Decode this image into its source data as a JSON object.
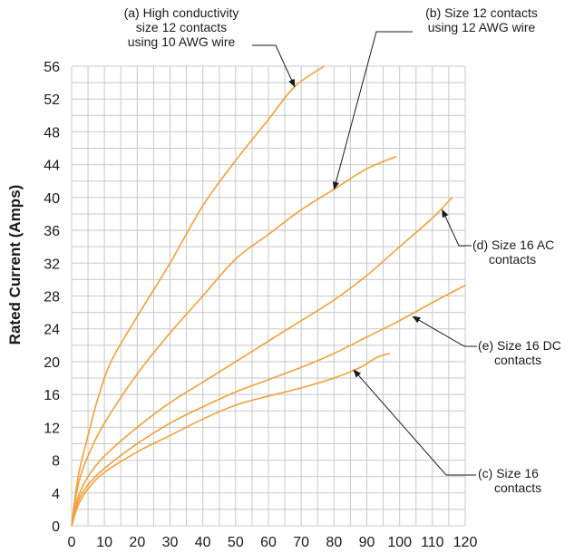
{
  "chart_data": {
    "type": "line",
    "title": "",
    "xlabel": "",
    "ylabel": "Rated Current (Amps)",
    "xlim": [
      0,
      120
    ],
    "ylim": [
      0,
      56
    ],
    "x_ticks": [
      0,
      10,
      20,
      30,
      40,
      50,
      60,
      70,
      80,
      90,
      100,
      110,
      120
    ],
    "y_ticks": [
      0,
      4,
      8,
      12,
      16,
      20,
      24,
      28,
      32,
      36,
      40,
      44,
      48,
      52,
      56
    ],
    "grid": true,
    "line_color": "#f2a03a",
    "series": [
      {
        "id": "a",
        "values": [
          [
            0,
            0
          ],
          [
            2,
            6
          ],
          [
            5,
            11
          ],
          [
            8,
            15.5
          ],
          [
            12,
            20
          ],
          [
            20,
            25.5
          ],
          [
            30,
            32
          ],
          [
            40,
            39
          ],
          [
            50,
            44.5
          ],
          [
            60,
            49.5
          ],
          [
            68,
            53.5
          ],
          [
            77,
            56
          ]
        ]
      },
      {
        "id": "b",
        "values": [
          [
            0,
            0
          ],
          [
            2,
            5
          ],
          [
            5,
            8.5
          ],
          [
            10,
            12.5
          ],
          [
            20,
            18.5
          ],
          [
            30,
            23.5
          ],
          [
            40,
            28
          ],
          [
            50,
            32.5
          ],
          [
            60,
            35.5
          ],
          [
            70,
            38.5
          ],
          [
            80,
            41
          ],
          [
            90,
            43.5
          ],
          [
            99,
            45
          ]
        ]
      },
      {
        "id": "d",
        "values": [
          [
            0,
            0
          ],
          [
            2,
            3.5
          ],
          [
            5,
            6
          ],
          [
            10,
            8.5
          ],
          [
            20,
            12
          ],
          [
            30,
            15
          ],
          [
            40,
            17.5
          ],
          [
            50,
            20
          ],
          [
            60,
            22.5
          ],
          [
            70,
            25
          ],
          [
            80,
            27.5
          ],
          [
            90,
            30.5
          ],
          [
            100,
            34
          ],
          [
            110,
            37.5
          ],
          [
            116,
            40
          ]
        ]
      },
      {
        "id": "e",
        "values": [
          [
            0,
            0
          ],
          [
            2,
            3
          ],
          [
            5,
            5
          ],
          [
            10,
            7
          ],
          [
            20,
            10
          ],
          [
            30,
            12.5
          ],
          [
            40,
            14.5
          ],
          [
            50,
            16.3
          ],
          [
            60,
            17.8
          ],
          [
            70,
            19.3
          ],
          [
            80,
            21
          ],
          [
            90,
            23
          ],
          [
            100,
            25
          ],
          [
            110,
            27.2
          ],
          [
            120,
            29.3
          ]
        ]
      },
      {
        "id": "c",
        "values": [
          [
            0,
            0
          ],
          [
            2,
            2.5
          ],
          [
            5,
            4.5
          ],
          [
            10,
            6.5
          ],
          [
            20,
            9
          ],
          [
            30,
            11
          ],
          [
            40,
            13
          ],
          [
            50,
            14.7
          ],
          [
            60,
            15.8
          ],
          [
            70,
            16.8
          ],
          [
            80,
            18
          ],
          [
            88,
            19.3
          ],
          [
            93,
            20.5
          ],
          [
            97,
            21
          ]
        ]
      }
    ],
    "annotations": [
      {
        "id": "a",
        "lines": [
          "(a) High conductivity",
          "size 12 contacts",
          "using 10 AWG wire"
        ],
        "arrow_to": [
          68,
          53.5
        ]
      },
      {
        "id": "b",
        "lines": [
          "(b) Size 12 contacts",
          "using 12 AWG wire"
        ],
        "arrow_to": [
          80,
          41
        ]
      },
      {
        "id": "d",
        "lines": [
          "(d) Size 16 AC",
          "contacts"
        ],
        "arrow_to": [
          113,
          38.5
        ]
      },
      {
        "id": "e",
        "lines": [
          "(e) Size 16 DC",
          "contacts"
        ],
        "arrow_to": [
          104,
          25.5
        ]
      },
      {
        "id": "c",
        "lines": [
          "(c) Size 16",
          "contacts"
        ],
        "arrow_to": [
          86,
          19
        ]
      }
    ]
  }
}
